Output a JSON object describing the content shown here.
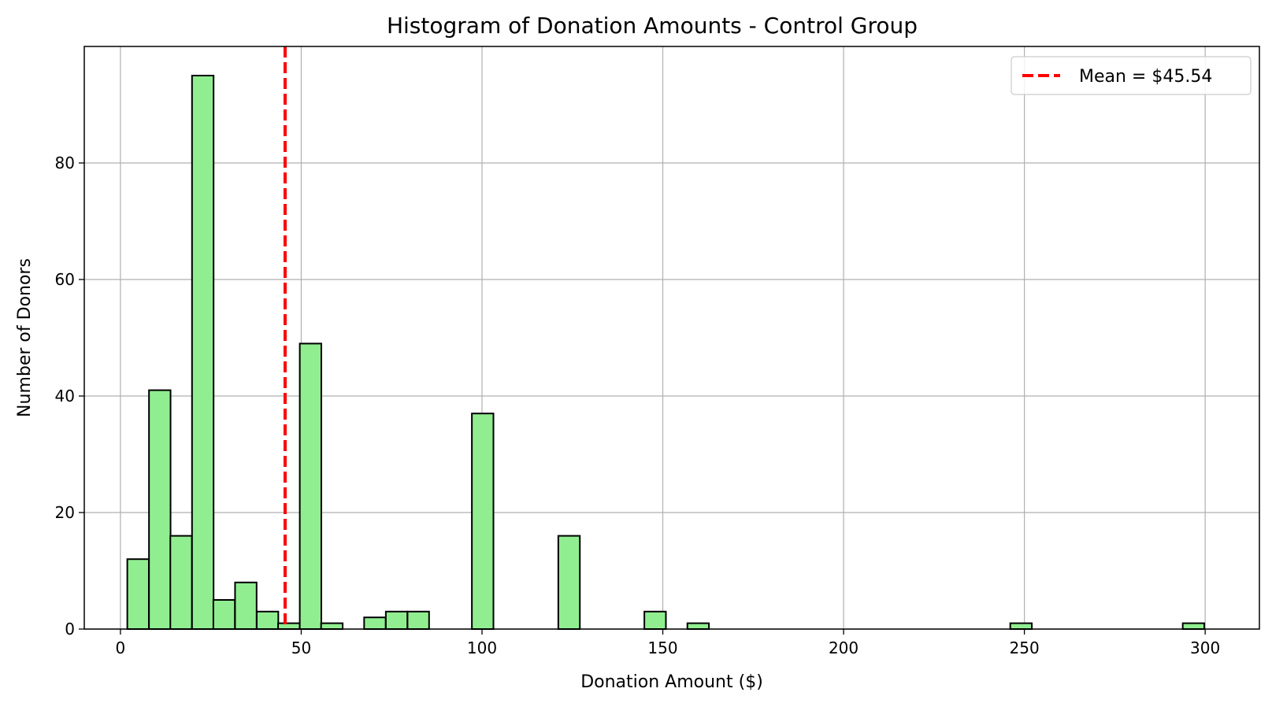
{
  "chart_data": {
    "type": "bar",
    "title": "Histogram of Donation Amounts - Control Group",
    "xlabel": "Donation Amount ($)",
    "ylabel": "Number of Donors",
    "xlim": [
      -10,
      315
    ],
    "ylim": [
      0,
      100
    ],
    "xticks": [
      0,
      50,
      100,
      150,
      200,
      250,
      300
    ],
    "yticks": [
      0,
      20,
      40,
      60,
      80
    ],
    "grid": true,
    "bar_color": "#90ee90",
    "edge_color": "#000000",
    "bin_width": 5.96,
    "bins": [
      {
        "start": 1.9,
        "count": 12
      },
      {
        "start": 7.9,
        "count": 41
      },
      {
        "start": 13.8,
        "count": 16
      },
      {
        "start": 19.8,
        "count": 95
      },
      {
        "start": 25.7,
        "count": 5
      },
      {
        "start": 31.7,
        "count": 8
      },
      {
        "start": 37.7,
        "count": 3
      },
      {
        "start": 43.6,
        "count": 1
      },
      {
        "start": 49.6,
        "count": 49
      },
      {
        "start": 55.5,
        "count": 1
      },
      {
        "start": 67.4,
        "count": 2
      },
      {
        "start": 73.4,
        "count": 3
      },
      {
        "start": 79.4,
        "count": 3
      },
      {
        "start": 97.2,
        "count": 37
      },
      {
        "start": 121.1,
        "count": 16
      },
      {
        "start": 144.9,
        "count": 3
      },
      {
        "start": 156.8,
        "count": 1
      },
      {
        "start": 246.1,
        "count": 1
      },
      {
        "start": 293.8,
        "count": 1
      }
    ],
    "mean_line": {
      "value": 45.54,
      "color": "#ff0000",
      "label": "Mean = $45.54"
    },
    "legend": {
      "position": "top-right",
      "entries": [
        "Mean = $45.54"
      ]
    }
  }
}
